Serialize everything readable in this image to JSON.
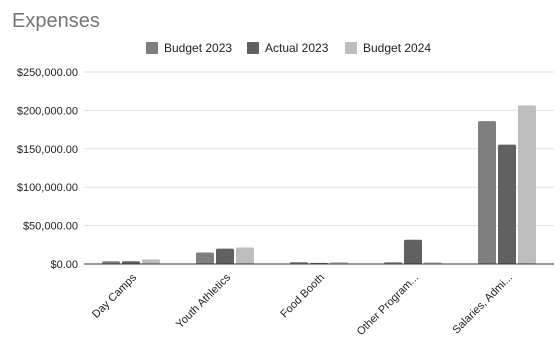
{
  "chart_data": {
    "type": "bar",
    "title": "Expenses",
    "categories": [
      "Day Camps",
      "Youth Athletics",
      "Food Booth",
      "Other Program...",
      "Salaries, Admi..."
    ],
    "series": [
      {
        "name": "Budget 2023",
        "color": "#7f7f7f",
        "values": [
          3500,
          15000,
          2500,
          2200,
          186000
        ]
      },
      {
        "name": "Actual 2023",
        "color": "#616161",
        "values": [
          3500,
          20000,
          1500,
          31500,
          155500
        ]
      },
      {
        "name": "Budget 2024",
        "color": "#bdbdbd",
        "values": [
          6000,
          21500,
          2500,
          2200,
          206500
        ]
      }
    ],
    "ylim": [
      0,
      250000
    ],
    "yticks": [
      0,
      50000,
      100000,
      150000,
      200000,
      250000
    ],
    "ytick_labels": [
      "$0.00",
      "$50,000.00",
      "$100,000.00",
      "$150,000.00",
      "$200,000.00",
      "$250,000.00"
    ],
    "legend_position": "top",
    "grid": true
  }
}
